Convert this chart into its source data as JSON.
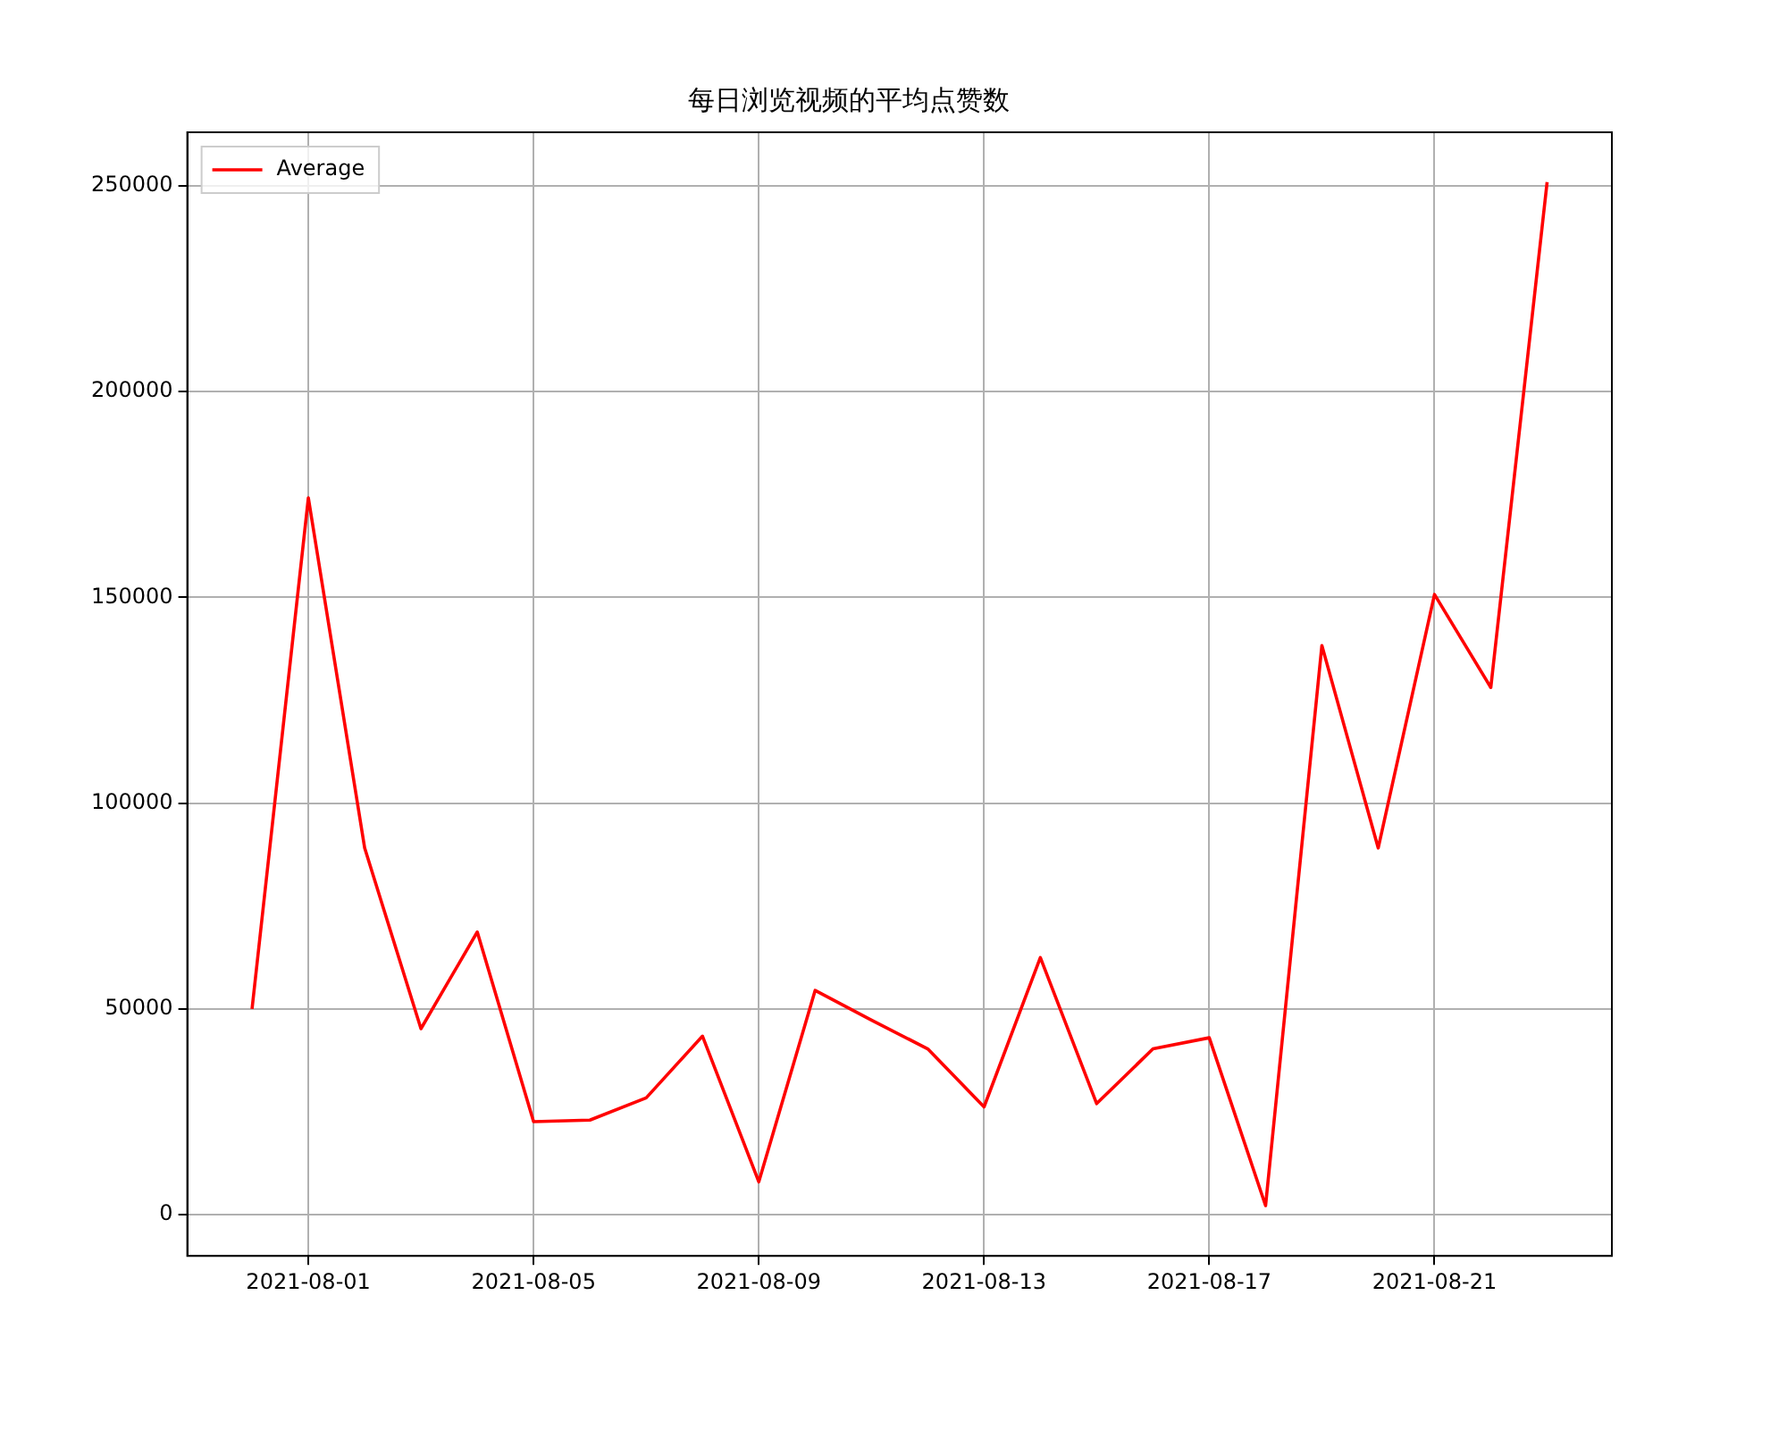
{
  "chart_data": {
    "type": "line",
    "title": "每日浏览视频的平均点赞数",
    "x": [
      "2021-07-31",
      "2021-08-01",
      "2021-08-02",
      "2021-08-03",
      "2021-08-04",
      "2021-08-05",
      "2021-08-06",
      "2021-08-07",
      "2021-08-08",
      "2021-08-09",
      "2021-08-10",
      "2021-08-11",
      "2021-08-12",
      "2021-08-13",
      "2021-08-14",
      "2021-08-15",
      "2021-08-16",
      "2021-08-17",
      "2021-08-18",
      "2021-08-19",
      "2021-08-20",
      "2021-08-21",
      "2021-08-22",
      "2021-08-23"
    ],
    "series": [
      {
        "name": "Average",
        "color": "#ff0000",
        "values": [
          50000,
          174200,
          89100,
          45200,
          68700,
          22600,
          23000,
          28400,
          43400,
          8000,
          54500,
          47300,
          40300,
          26200,
          62500,
          27000,
          40300,
          43000,
          2200,
          138300,
          89100,
          150700,
          128100,
          250900
        ]
      }
    ],
    "xlim": [
      "2021-07-29T20:24",
      "2021-08-24T03:36"
    ],
    "xticks": [
      "2021-08-01",
      "2021-08-05",
      "2021-08-09",
      "2021-08-13",
      "2021-08-17",
      "2021-08-21"
    ],
    "ylim": [
      -10000,
      263000
    ],
    "yticks": [
      0,
      50000,
      100000,
      150000,
      200000,
      250000
    ],
    "grid": true,
    "legend": "top left",
    "marker": "none",
    "line_style": "solid"
  }
}
